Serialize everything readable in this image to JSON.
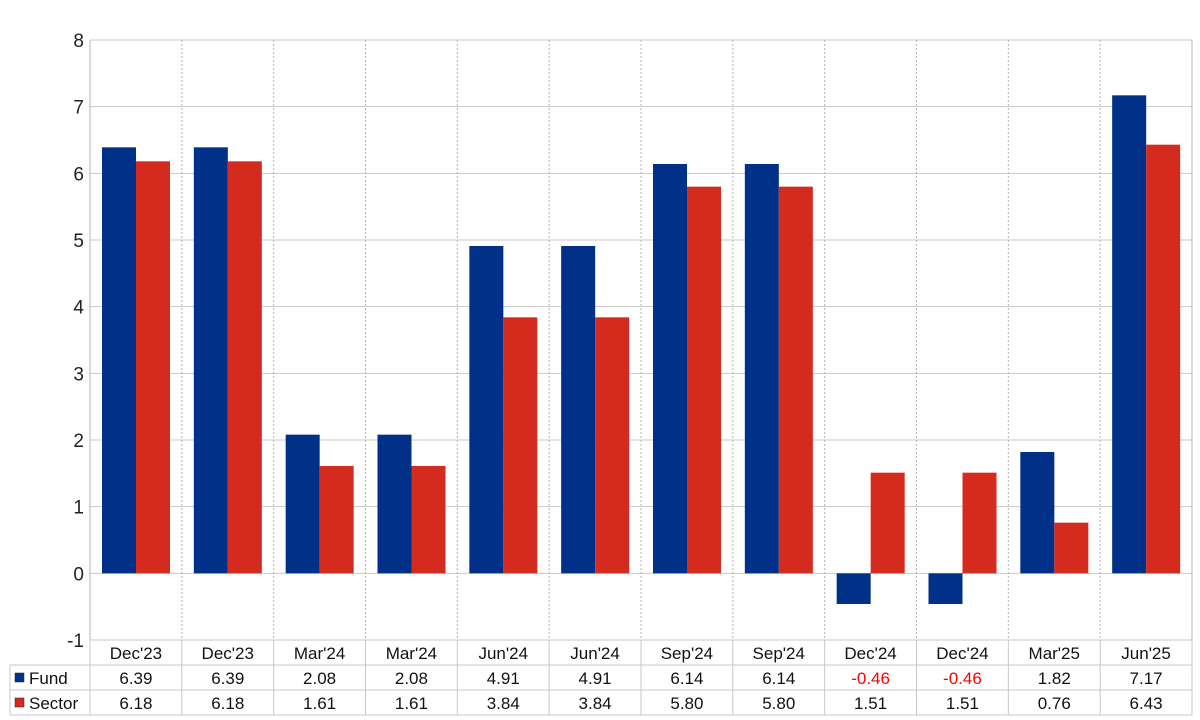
{
  "chart_data": {
    "type": "bar",
    "categories": [
      "Dec'23",
      "Dec'23",
      "Mar'24",
      "Mar'24",
      "Jun'24",
      "Jun'24",
      "Sep'24",
      "Sep'24",
      "Dec'24",
      "Dec'24",
      "Mar'25",
      "Jun'25"
    ],
    "series": [
      {
        "name": "Fund",
        "color": "#003087",
        "values": [
          6.39,
          6.39,
          2.08,
          2.08,
          4.91,
          4.91,
          6.14,
          6.14,
          -0.46,
          -0.46,
          1.82,
          7.17
        ],
        "labels": [
          "6.39",
          "6.39",
          "2.08",
          "2.08",
          "4.91",
          "4.91",
          "6.14",
          "6.14",
          "-0.46",
          "-0.46",
          "1.82",
          "7.17"
        ]
      },
      {
        "name": "Sector",
        "color": "#d52b1e",
        "values": [
          6.18,
          6.18,
          1.61,
          1.61,
          3.84,
          3.84,
          5.8,
          5.8,
          1.51,
          1.51,
          0.76,
          6.43
        ],
        "labels": [
          "6.18",
          "6.18",
          "1.61",
          "1.61",
          "3.84",
          "3.84",
          "5.80",
          "5.80",
          "1.51",
          "1.51",
          "0.76",
          "6.43"
        ]
      }
    ],
    "yticks": [
      "8",
      "7",
      "6",
      "5",
      "4",
      "3",
      "2",
      "1",
      "0",
      "-1"
    ],
    "ylim": [
      -1,
      8
    ],
    "negative_label_color": "#ff0000",
    "grid": true,
    "data_table": true,
    "legend": "data-table-left"
  }
}
